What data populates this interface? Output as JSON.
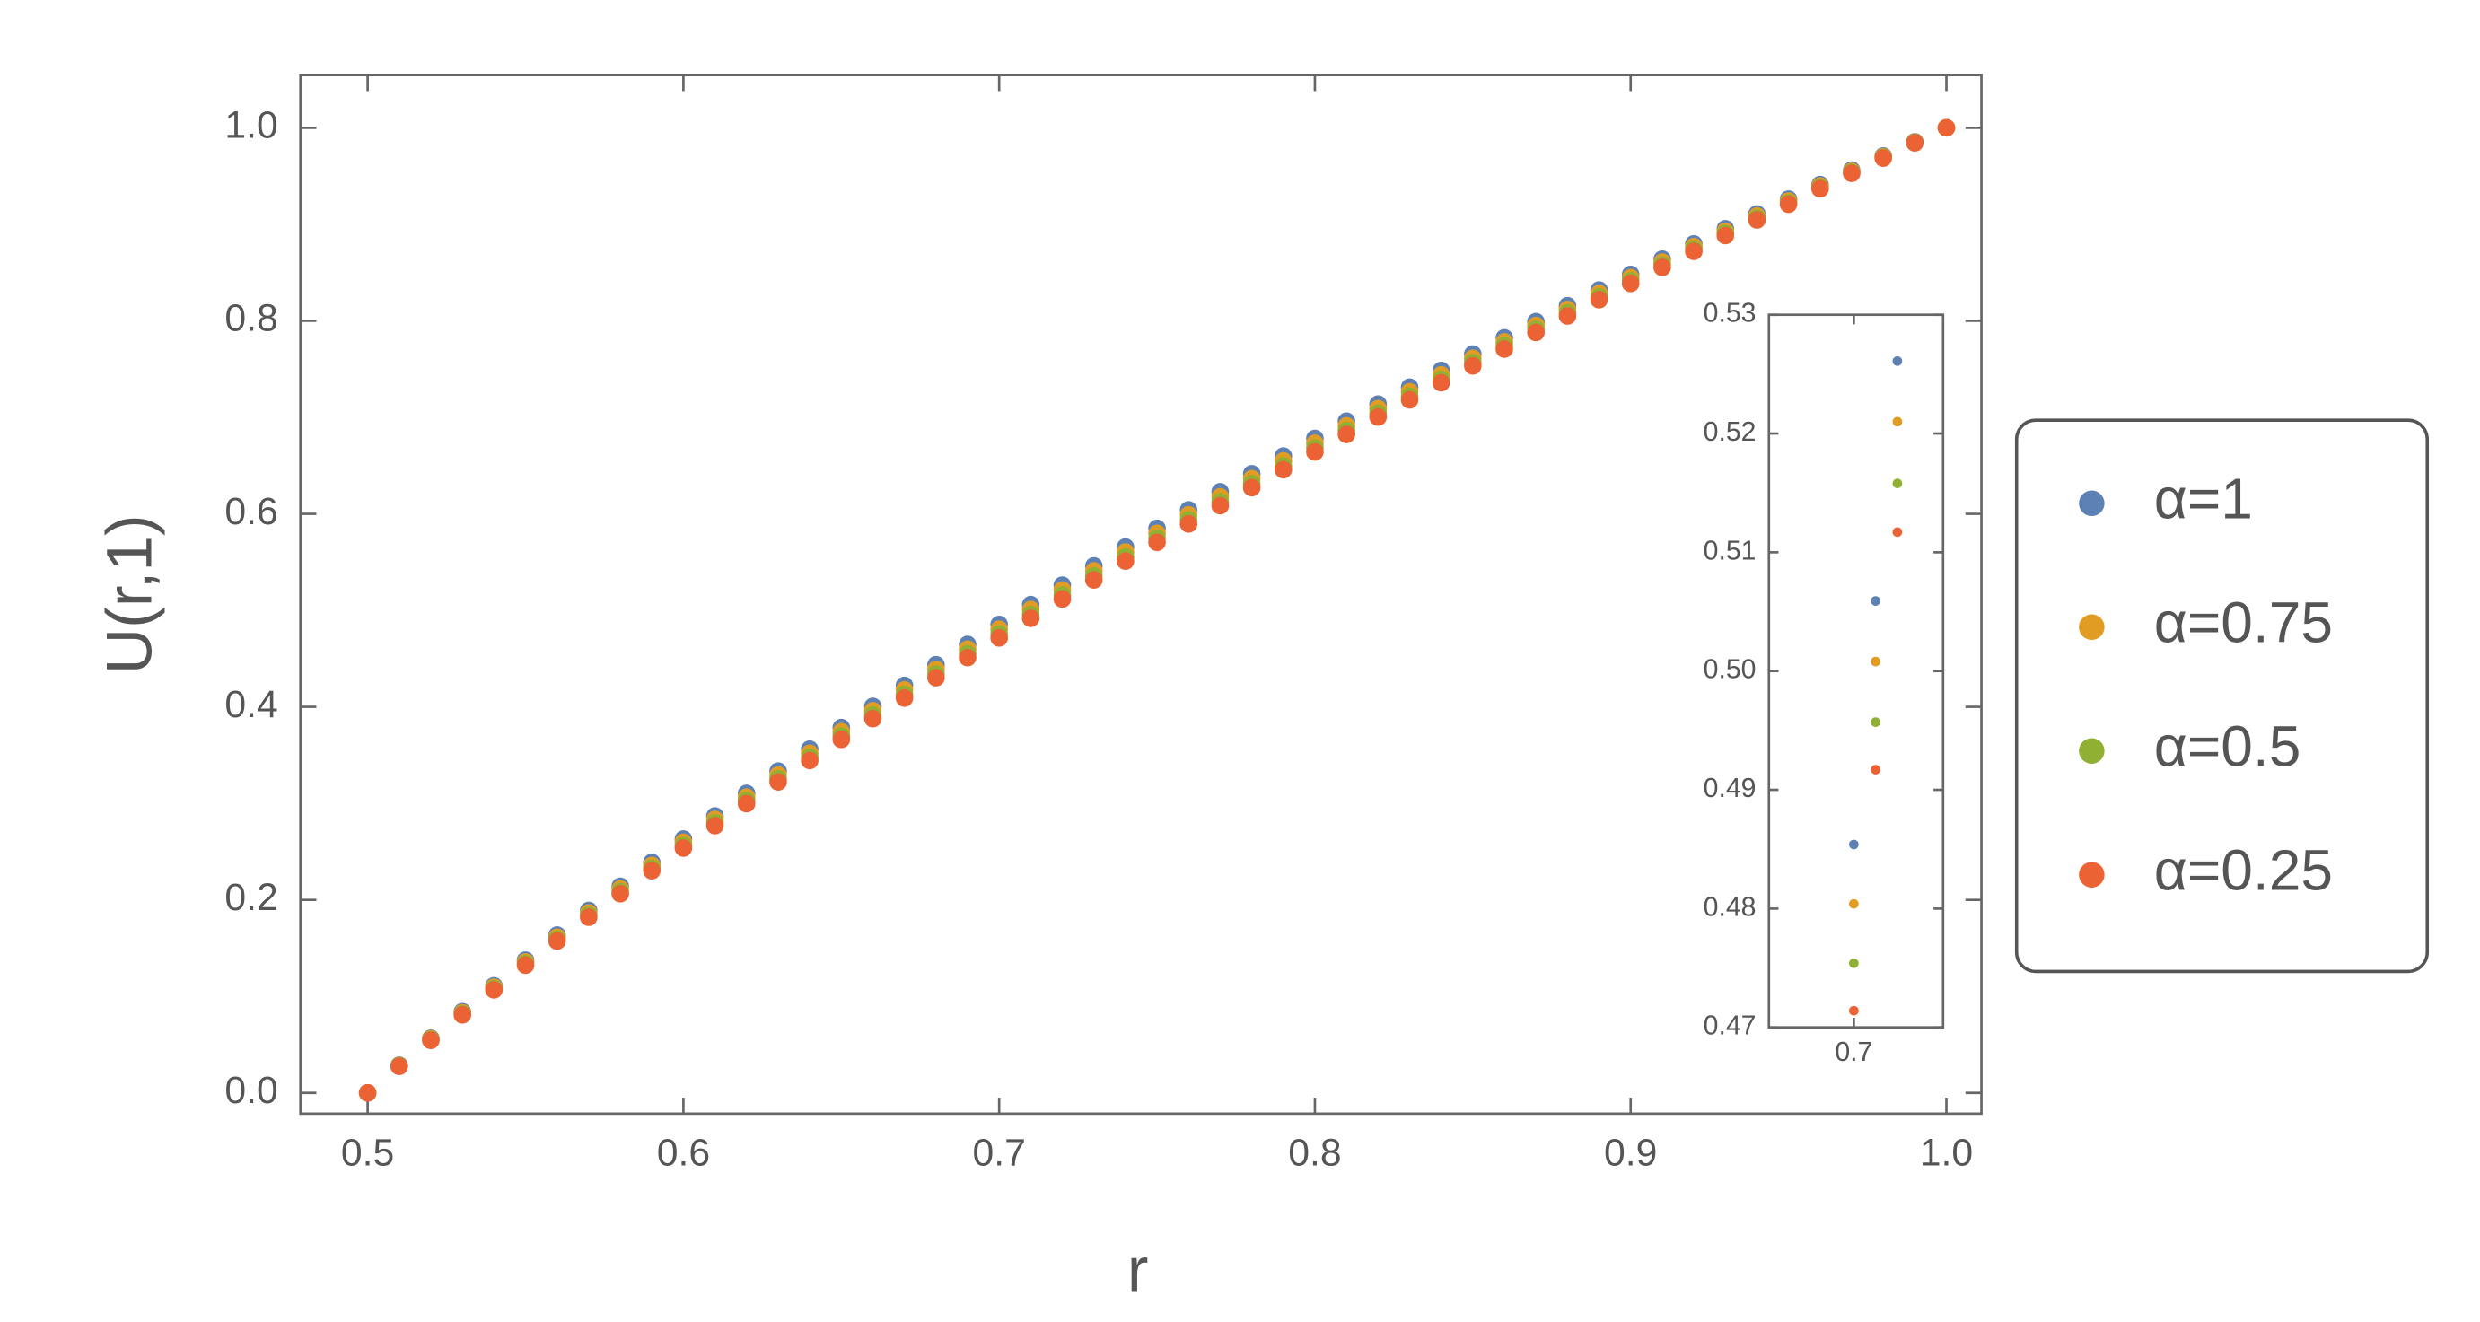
{
  "chart_data": [
    {
      "type": "scatter",
      "xlabel": "r",
      "ylabel": "U(r,1)",
      "xlim": [
        0.4787,
        1.0111
      ],
      "ylim": [
        -0.0215,
        1.0546
      ],
      "xticks": [
        0.5,
        0.6,
        0.7,
        0.8,
        0.9,
        {
          "value": 1.0,
          "label": "1.0"
        }
      ],
      "yticks": [
        {
          "value": 0.0,
          "label": "0.0"
        },
        0.2,
        0.4,
        0.6,
        0.8,
        {
          "value": 1.0,
          "label": "1.0"
        }
      ],
      "legend_position": "right",
      "x": [
        0.5,
        0.51,
        0.52,
        0.53,
        0.54,
        0.55,
        0.56,
        0.57,
        0.58,
        0.59,
        0.6,
        0.61,
        0.62,
        0.63,
        0.64,
        0.65,
        0.66,
        0.67,
        0.68,
        0.69,
        0.7,
        0.71,
        0.72,
        0.73,
        0.74,
        0.75,
        0.76,
        0.77,
        0.78,
        0.79,
        0.8,
        0.81,
        0.82,
        0.83,
        0.84,
        0.85,
        0.86,
        0.87,
        0.88,
        0.89,
        0.9,
        0.91,
        0.92,
        0.93,
        0.94,
        0.95,
        0.96,
        0.97,
        0.98,
        0.99,
        1.0
      ],
      "series": [
        {
          "name": "α=1",
          "color": "#5e81b5",
          "values": [
            0,
            0.0286,
            0.0566,
            0.0841,
            0.111,
            0.1375,
            0.1635,
            0.189,
            0.2141,
            0.2388,
            0.263,
            0.2869,
            0.3103,
            0.3334,
            0.3561,
            0.3785,
            0.4005,
            0.4222,
            0.4436,
            0.4647,
            0.4854,
            0.5059,
            0.5261,
            0.546,
            0.5656,
            0.585,
            0.6041,
            0.6229,
            0.6415,
            0.6599,
            0.6781,
            0.696,
            0.7137,
            0.7312,
            0.7485,
            0.7655,
            0.7824,
            0.7991,
            0.8156,
            0.8319,
            0.848,
            0.8639,
            0.8797,
            0.8953,
            0.9107,
            0.926,
            0.9411,
            0.9561,
            0.9708,
            0.9855,
            1
          ]
        },
        {
          "name": "α=0.75",
          "color": "#e19c24",
          "values": [
            0,
            0.0282,
            0.0558,
            0.0829,
            0.1095,
            0.1356,
            0.1613,
            0.1865,
            0.2113,
            0.2357,
            0.2597,
            0.2833,
            0.3065,
            0.3294,
            0.3519,
            0.3741,
            0.396,
            0.4175,
            0.4388,
            0.4598,
            0.4804,
            0.5008,
            0.521,
            0.5408,
            0.5604,
            0.5798,
            0.5989,
            0.6177,
            0.6364,
            0.6548,
            0.6731,
            0.6911,
            0.7089,
            0.7265,
            0.744,
            0.7611,
            0.7782,
            0.7951,
            0.8118,
            0.8283,
            0.8447,
            0.8608,
            0.8769,
            0.8928,
            0.9085,
            0.9241,
            0.9396,
            0.9549,
            0.97,
            0.9851,
            1
          ]
        },
        {
          "name": "α=0.5",
          "color": "#8fb032",
          "values": [
            0,
            0.0278,
            0.055,
            0.0817,
            0.1079,
            0.1337,
            0.1591,
            0.184,
            0.2085,
            0.2326,
            0.2563,
            0.2797,
            0.3027,
            0.3254,
            0.3477,
            0.3697,
            0.3914,
            0.4128,
            0.434,
            0.4549,
            0.4754,
            0.4957,
            0.5158,
            0.5356,
            0.5552,
            0.5746,
            0.5937,
            0.6125,
            0.6312,
            0.6497,
            0.6681,
            0.6862,
            0.7041,
            0.7218,
            0.7394,
            0.7567,
            0.774,
            0.7911,
            0.808,
            0.8247,
            0.8413,
            0.8577,
            0.8741,
            0.8903,
            0.9063,
            0.9222,
            0.938,
            0.9537,
            0.9692,
            0.9847,
            1
          ]
        },
        {
          "name": "α=0.25",
          "color": "#eb6235",
          "values": [
            0,
            0.0275,
            0.0544,
            0.0808,
            0.1067,
            0.1323,
            0.1573,
            0.182,
            0.2063,
            0.2302,
            0.2537,
            0.2769,
            0.2997,
            0.3222,
            0.3444,
            0.3663,
            0.3878,
            0.4091,
            0.4302,
            0.451,
            0.4714,
            0.4917,
            0.5117,
            0.5315,
            0.551,
            0.5704,
            0.5895,
            0.6084,
            0.6271,
            0.6457,
            0.6641,
            0.6823,
            0.7003,
            0.7181,
            0.7358,
            0.7533,
            0.7707,
            0.7879,
            0.805,
            0.8219,
            0.8387,
            0.8553,
            0.8719,
            0.8883,
            0.9045,
            0.9208,
            0.9368,
            0.9528,
            0.9686,
            0.9844,
            1
          ]
        }
      ]
    },
    {
      "type": "scatter",
      "xlim": [
        0.661,
        0.741
      ],
      "ylim": [
        0.47,
        0.53
      ],
      "xticks": [
        0.7
      ],
      "yticks": [
        0.47,
        0.48,
        0.49,
        {
          "value": 0.5,
          "label": "0.50"
        },
        0.51,
        0.52,
        0.53
      ],
      "x": [
        0.7,
        0.71,
        0.72
      ],
      "series": [
        {
          "color": "#5e81b5",
          "values": [
            0.4854,
            0.5059,
            0.5261
          ]
        },
        {
          "color": "#e19c24",
          "values": [
            0.4804,
            0.5008,
            0.521
          ]
        },
        {
          "color": "#8fb032",
          "values": [
            0.4754,
            0.4957,
            0.5158
          ]
        },
        {
          "color": "#eb6235",
          "values": [
            0.4714,
            0.4917,
            0.5117
          ]
        }
      ]
    }
  ]
}
